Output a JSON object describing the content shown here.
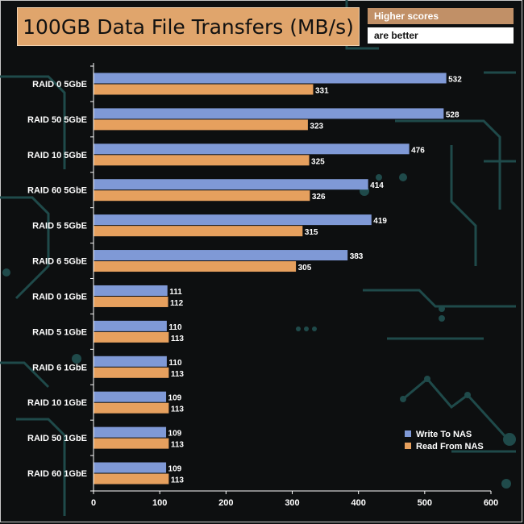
{
  "header": {
    "title": "100GB Data File Transfers (MB/s)",
    "note_line1": "Higher scores",
    "note_line2": "are better"
  },
  "colors": {
    "write": "#7f99d6",
    "read": "#e6a05e",
    "title_bg": "#e0a56c",
    "background": "#0d0f10",
    "circuit": "#1f4a4a"
  },
  "chart_data": {
    "type": "bar",
    "orientation": "horizontal",
    "title": "100GB Data File Transfers (MB/s)",
    "categories": [
      "RAID 0 5GbE",
      "RAID 50 5GbE",
      "RAID 10 5GbE",
      "RAID 60 5GbE",
      "RAID 5 5GbE",
      "RAID 6 5GbE",
      "RAID 0 1GbE",
      "RAID 5 1GbE",
      "RAID 6 1GbE",
      "RAID 10 1GbE",
      "RAID 50 1GbE",
      "RAID 60 1GbE"
    ],
    "series": [
      {
        "name": "Write To NAS",
        "color": "#7f99d6",
        "values": [
          532,
          528,
          476,
          414,
          419,
          383,
          111,
          110,
          110,
          109,
          109,
          109
        ]
      },
      {
        "name": "Read From NAS",
        "color": "#e6a05e",
        "values": [
          331,
          323,
          325,
          326,
          315,
          305,
          112,
          113,
          113,
          113,
          113,
          113
        ]
      }
    ],
    "xlim": [
      0,
      600
    ],
    "xticks": [
      0,
      100,
      200,
      300,
      400,
      500,
      600
    ],
    "xlabel": "",
    "ylabel": "",
    "grid": false,
    "legend_position": "bottom-right"
  }
}
